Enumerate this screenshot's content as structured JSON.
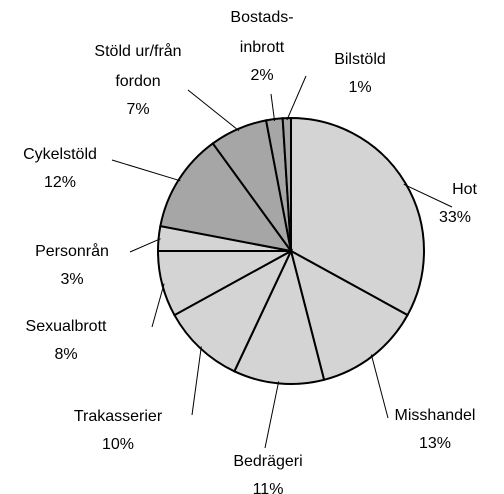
{
  "chart_data": {
    "type": "pie",
    "categories": [
      "Hot",
      "Misshandel",
      "Bedrägeri",
      "Trakasserier",
      "Sexualbrott",
      "Personrån",
      "Cykelstöld",
      "Stöld ur/från\nfordon",
      "Bostads-\ninbrott",
      "Bilstöld"
    ],
    "values": [
      33,
      13,
      11,
      10,
      8,
      3,
      12,
      7,
      2,
      1
    ],
    "value_labels": [
      "33%",
      "13%",
      "11%",
      "10%",
      "8%",
      "3%",
      "12%",
      "7%",
      "2%",
      "1%"
    ],
    "colors": [
      "#d4d4d4",
      "#d4d4d4",
      "#d4d4d4",
      "#d4d4d4",
      "#d4d4d4",
      "#d4d4d4",
      "#a6a6a6",
      "#a6a6a6",
      "#a6a6a6",
      "#a6a6a6"
    ]
  }
}
